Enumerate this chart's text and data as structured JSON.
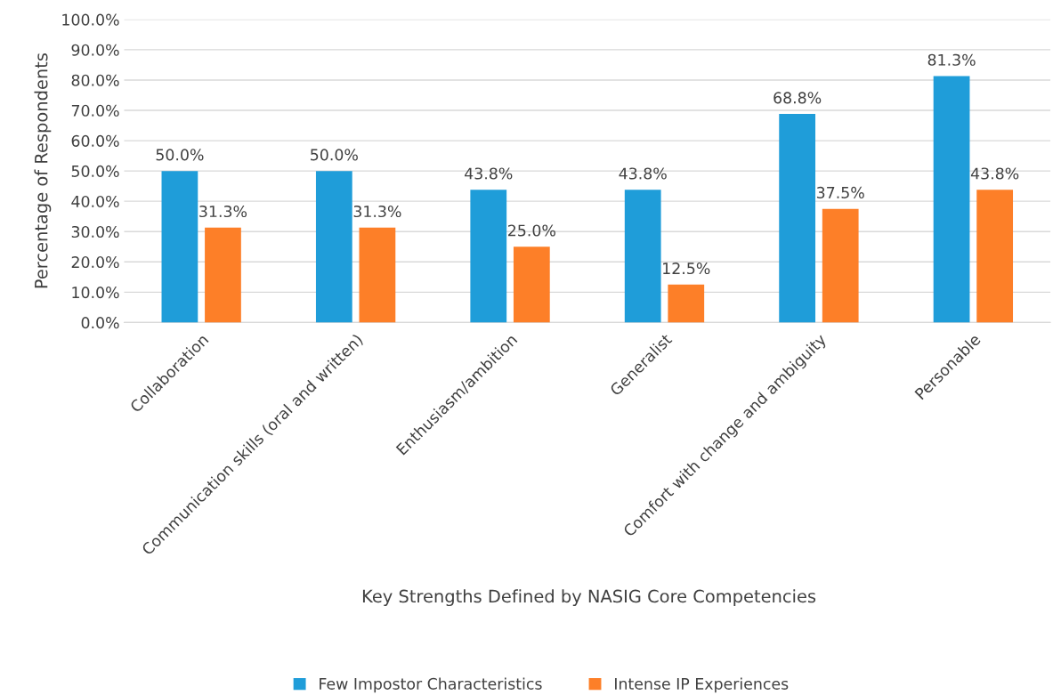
{
  "chart_data": {
    "type": "bar",
    "xlabel": "Key Strengths Defined by NASIG Core Competencies",
    "ylabel": "Percentage of Respondents",
    "categories": [
      "Collaboration",
      "Communication skills (oral and written)",
      "Enthusiasm/ambition",
      "Generalist",
      "Comfort with change and ambiguity",
      "Personable"
    ],
    "series": [
      {
        "name": "Few Impostor Characteristics",
        "color": "#1f9dd9",
        "values": [
          50.0,
          50.0,
          43.8,
          43.8,
          68.8,
          81.3
        ],
        "value_labels": [
          "50.0%",
          "50.0%",
          "43.8%",
          "43.8%",
          "68.8%",
          "81.3%"
        ]
      },
      {
        "name": "Intense IP Experiences",
        "color": "#fd7f28",
        "values": [
          31.3,
          31.3,
          25.0,
          12.5,
          37.5,
          43.8
        ],
        "value_labels": [
          "31.3%",
          "31.3%",
          "25.0%",
          "12.5%",
          "37.5%",
          "43.8%"
        ]
      }
    ],
    "ylim": [
      0,
      100
    ],
    "yticks": [
      {
        "value": 0,
        "label": "0.0%"
      },
      {
        "value": 10,
        "label": "10.0%"
      },
      {
        "value": 20,
        "label": "20.0%"
      },
      {
        "value": 30,
        "label": "30.0%"
      },
      {
        "value": 40,
        "label": "40.0%"
      },
      {
        "value": 50,
        "label": "50.0%"
      },
      {
        "value": 60,
        "label": "60.0%"
      },
      {
        "value": 70,
        "label": "70.0%"
      },
      {
        "value": 80,
        "label": "80.0%"
      },
      {
        "value": 90,
        "label": "90.0%"
      },
      {
        "value": 100,
        "label": "100.0%"
      }
    ],
    "grid": "y",
    "legend": "bottom"
  }
}
